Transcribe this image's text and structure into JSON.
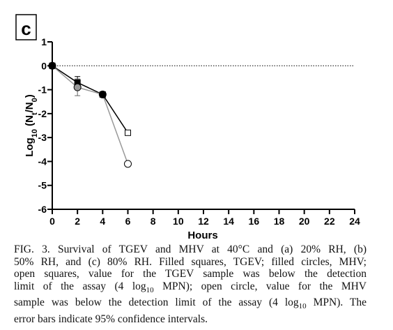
{
  "panel_label": "C",
  "chart_data": {
    "type": "line",
    "xlabel": "Hours",
    "ylabel": {
      "base": "Log",
      "sub1": "10",
      "mid": " (N",
      "sub2": "t",
      "mid2": "/N",
      "sub3": "0",
      "end": ")"
    },
    "xlim": [
      0,
      24
    ],
    "ylim": [
      -6,
      1
    ],
    "x_ticks": [
      0,
      2,
      4,
      6,
      8,
      10,
      12,
      14,
      16,
      18,
      20,
      22,
      24
    ],
    "y_ticks": [
      1,
      0,
      -1,
      -2,
      -3,
      -4,
      -5,
      -6
    ],
    "reference_line": {
      "y": 0,
      "style": "dotted"
    },
    "series": [
      {
        "name": "TGEV",
        "marker": "square",
        "color": "#000000",
        "points": [
          {
            "x": 0,
            "y": 0,
            "filled": true
          },
          {
            "x": 2,
            "y": -0.7,
            "filled": true,
            "err": 0.25
          },
          {
            "x": 4,
            "y": -1.2,
            "filled": true
          },
          {
            "x": 6,
            "y": -2.8,
            "filled": false
          }
        ]
      },
      {
        "name": "MHV",
        "marker": "circle",
        "color": "#999999",
        "points": [
          {
            "x": 0,
            "y": 0,
            "filled": true
          },
          {
            "x": 2,
            "y": -0.9,
            "filled": true,
            "err": 0.35
          },
          {
            "x": 4,
            "y": -1.2,
            "filled": true
          },
          {
            "x": 6,
            "y": -4.1,
            "filled": false
          }
        ]
      }
    ]
  },
  "caption": {
    "lines": [
      "FIG. 3. Survival of TGEV and MHV at 40°C and (a) 20% RH, (b)",
      "50% RH, and (c) 80% RH. Filled squares, TGEV; filled circles, MHV;",
      "open squares, value for the TGEV sample was below the detection",
      "limit of the assay (4 log10 MPN); open circle, value for the MHV",
      "sample was below the detection limit of the assay (4 log10 MPN). The",
      "error bars indicate 95% confidence intervals."
    ]
  }
}
